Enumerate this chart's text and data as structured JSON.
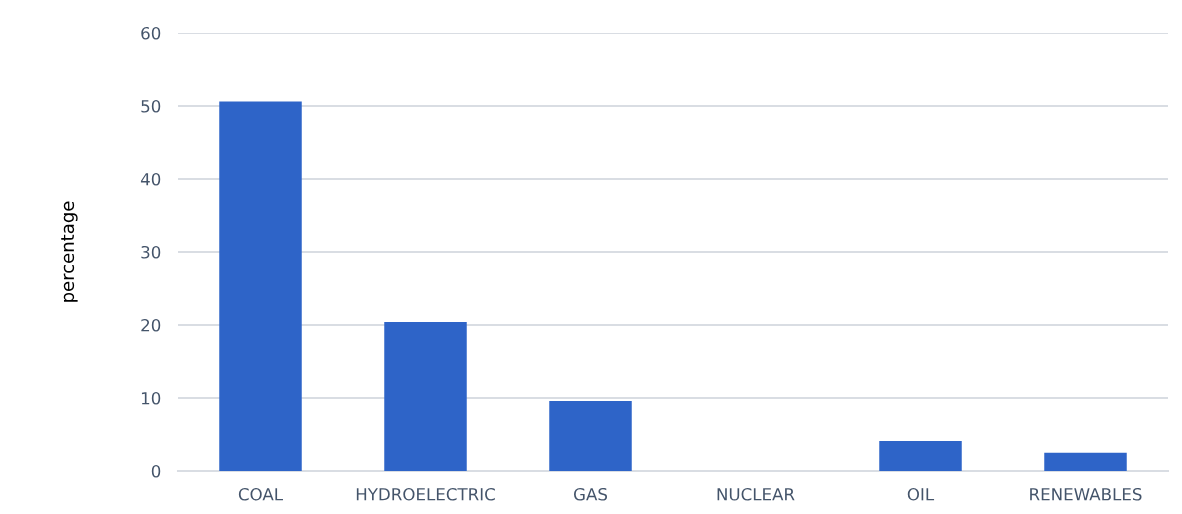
{
  "chart_data": {
    "type": "bar",
    "ylabel": "percentage",
    "categories": [
      "COAL",
      "HYDROELECTRIC",
      "GAS",
      "NUCLEAR",
      "OIL",
      "RENEWABLES"
    ],
    "values": [
      50.6,
      20.4,
      9.6,
      0,
      4.1,
      2.5
    ],
    "color": "#2e64c8",
    "ylim": [
      0,
      60
    ],
    "yticks": [
      0,
      10,
      20,
      30,
      40,
      50,
      60
    ],
    "grid": "y"
  }
}
